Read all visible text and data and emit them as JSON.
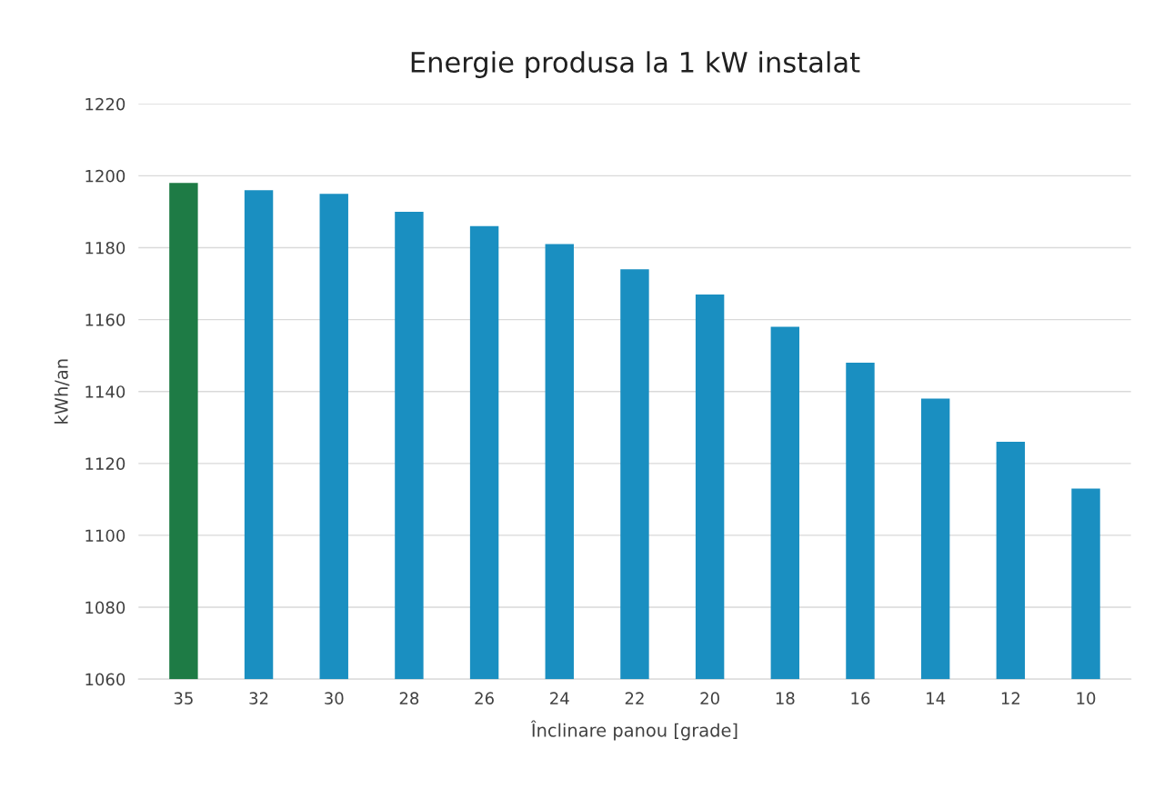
{
  "chart_data": {
    "type": "bar",
    "title": "Energie produsa la 1 kW instalat",
    "xlabel": "Înclinare panou [grade]",
    "ylabel": "kWh/an",
    "categories": [
      "35",
      "32",
      "30",
      "28",
      "26",
      "24",
      "22",
      "20",
      "18",
      "16",
      "14",
      "12",
      "10"
    ],
    "values": [
      1198,
      1196,
      1195,
      1190,
      1186,
      1181,
      1174,
      1167,
      1158,
      1148,
      1138,
      1126,
      1113
    ],
    "colors": [
      "#1e7b45",
      "#1a8fc1",
      "#1a8fc1",
      "#1a8fc1",
      "#1a8fc1",
      "#1a8fc1",
      "#1a8fc1",
      "#1a8fc1",
      "#1a8fc1",
      "#1a8fc1",
      "#1a8fc1",
      "#1a8fc1",
      "#1a8fc1"
    ],
    "ylim": [
      1060,
      1220
    ],
    "yticks": [
      1060,
      1080,
      1100,
      1120,
      1140,
      1160,
      1180,
      1200,
      1220
    ],
    "grid": "y"
  }
}
